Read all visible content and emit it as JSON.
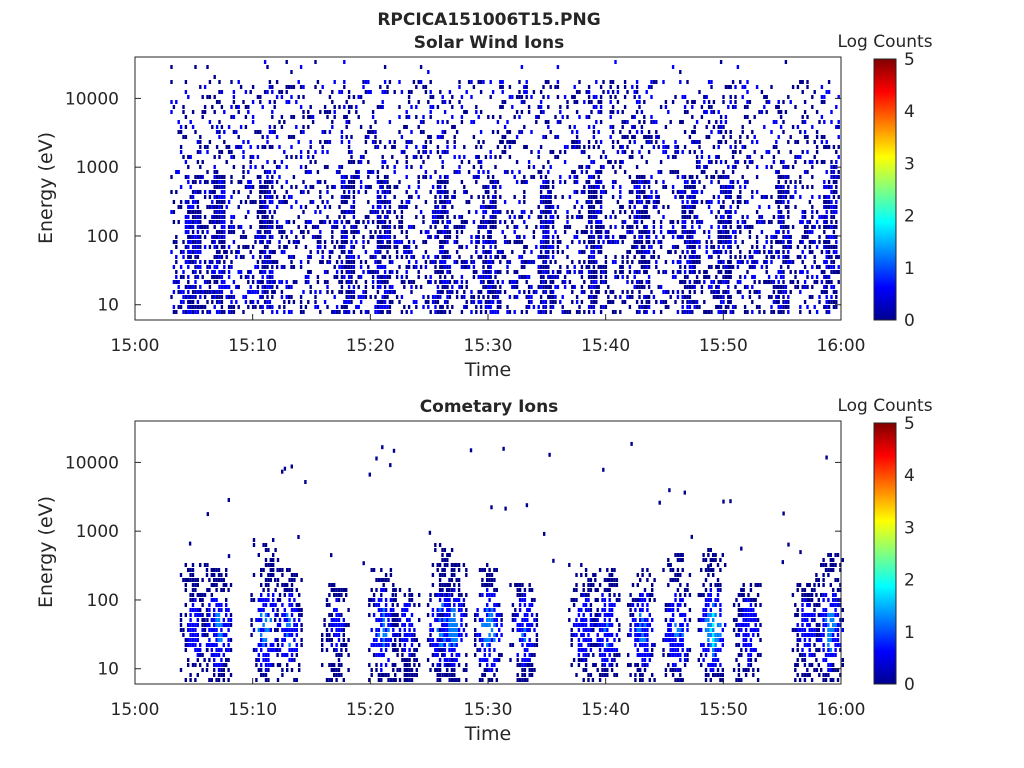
{
  "figure": {
    "title": "RPCICA151006T15.PNG"
  },
  "colormap": [
    "#00008f",
    "#0000ff",
    "#0080ff",
    "#00ffff",
    "#80ff80",
    "#ffff00",
    "#ff8000",
    "#ff0000",
    "#800000"
  ],
  "chart_data": [
    {
      "type": "heatmap",
      "title": "Solar Wind Ions",
      "xlabel": "Time",
      "ylabel": "Energy (eV)",
      "x_ticks": [
        "15:00",
        "15:10",
        "15:20",
        "15:30",
        "15:40",
        "15:50",
        "16:00"
      ],
      "xlim": [
        "15:00",
        "16:00"
      ],
      "y_scale": "log",
      "y_ticks": [
        "10",
        "100",
        "1000",
        "10000"
      ],
      "ylim": [
        6,
        40000
      ],
      "colorbar": {
        "label": "Log Counts",
        "range": [
          0,
          5
        ],
        "ticks": [
          "0",
          "1",
          "2",
          "3",
          "4",
          "5"
        ]
      },
      "intensity_log_counts_max": 0.5,
      "data_start": "15:03",
      "vertical_streaks_at": [
        "15:05",
        "15:07",
        "15:11",
        "15:18",
        "15:21",
        "15:26",
        "15:30",
        "15:35",
        "15:39",
        "15:43",
        "15:47",
        "15:50",
        "15:55",
        "15:59"
      ],
      "description_values": "sparse speckle 0-0.5 log counts from ~6 eV to ~20000 eV"
    },
    {
      "type": "heatmap",
      "title": "Cometary Ions",
      "xlabel": "Time",
      "ylabel": "Energy (eV)",
      "x_ticks": [
        "15:00",
        "15:10",
        "15:20",
        "15:30",
        "15:40",
        "15:50",
        "16:00"
      ],
      "xlim": [
        "15:00",
        "16:00"
      ],
      "y_scale": "log",
      "y_ticks": [
        "10",
        "100",
        "1000",
        "10000"
      ],
      "ylim": [
        6,
        40000
      ],
      "colorbar": {
        "label": "Log Counts",
        "range": [
          0,
          5
        ],
        "ticks": [
          "0",
          "1",
          "2",
          "3",
          "4",
          "5"
        ]
      },
      "bursts": [
        {
          "t": "15:05",
          "peak_log_counts": 0.9,
          "e_max": 400
        },
        {
          "t": "15:07",
          "peak_log_counts": 1.6,
          "e_max": 300
        },
        {
          "t": "15:11",
          "peak_log_counts": 1.7,
          "e_max": 800
        },
        {
          "t": "15:13",
          "peak_log_counts": 1.4,
          "e_max": 300
        },
        {
          "t": "15:17",
          "peak_log_counts": 0.7,
          "e_max": 200
        },
        {
          "t": "15:21",
          "peak_log_counts": 1.6,
          "e_max": 300
        },
        {
          "t": "15:23",
          "peak_log_counts": 0.8,
          "e_max": 150
        },
        {
          "t": "15:26",
          "peak_log_counts": 1.7,
          "e_max": 700
        },
        {
          "t": "15:27",
          "peak_log_counts": 1.8,
          "e_max": 400
        },
        {
          "t": "15:30",
          "peak_log_counts": 1.9,
          "e_max": 400
        },
        {
          "t": "15:33",
          "peak_log_counts": 1.2,
          "e_max": 200
        },
        {
          "t": "15:38",
          "peak_log_counts": 1.0,
          "e_max": 400
        },
        {
          "t": "15:40",
          "peak_log_counts": 1.3,
          "e_max": 300
        },
        {
          "t": "15:43",
          "peak_log_counts": 1.4,
          "e_max": 300
        },
        {
          "t": "15:46",
          "peak_log_counts": 1.5,
          "e_max": 500
        },
        {
          "t": "15:49",
          "peak_log_counts": 2.2,
          "e_max": 600
        },
        {
          "t": "15:52",
          "peak_log_counts": 1.0,
          "e_max": 200
        },
        {
          "t": "15:57",
          "peak_log_counts": 0.9,
          "e_max": 200
        },
        {
          "t": "15:59",
          "peak_log_counts": 1.7,
          "e_max": 500
        }
      ]
    }
  ]
}
